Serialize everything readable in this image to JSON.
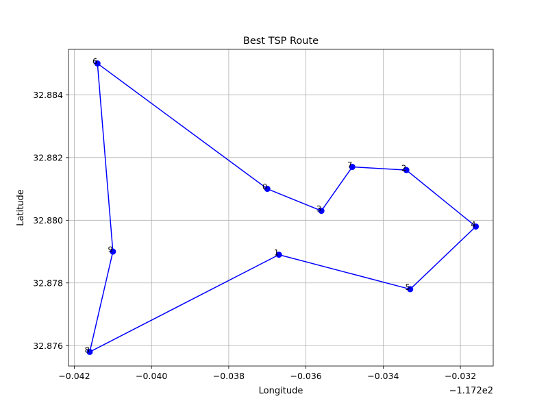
{
  "chart_data": {
    "type": "line",
    "title": "Best TSP Route",
    "xlabel": "Longitude",
    "ylabel": "Latitude",
    "x_offset_label": "−1.172e2",
    "xlim": [
      -0.04215,
      -0.03115
    ],
    "ylim": [
      32.87535,
      32.88545
    ],
    "x_ticks": [
      -0.042,
      -0.04,
      -0.038,
      -0.036,
      -0.034,
      -0.032
    ],
    "x_tick_labels": [
      "−0.042",
      "−0.040",
      "−0.038",
      "−0.036",
      "−0.034",
      "−0.032"
    ],
    "y_ticks": [
      32.876,
      32.878,
      32.88,
      32.882,
      32.884
    ],
    "y_tick_labels": [
      "32.876",
      "32.878",
      "32.880",
      "32.882",
      "32.884"
    ],
    "grid": true,
    "color": "#0000ff",
    "points": [
      {
        "label": "0",
        "x": -0.037,
        "y": 32.881
      },
      {
        "label": "1",
        "x": -0.0367,
        "y": 32.8789
      },
      {
        "label": "2",
        "x": -0.0334,
        "y": 32.8816
      },
      {
        "label": "3",
        "x": -0.0356,
        "y": 32.8803
      },
      {
        "label": "4",
        "x": -0.0316,
        "y": 32.8798
      },
      {
        "label": "5",
        "x": -0.0333,
        "y": 32.8778
      },
      {
        "label": "6",
        "x": -0.0414,
        "y": 32.885
      },
      {
        "label": "7",
        "x": -0.0348,
        "y": 32.8817
      },
      {
        "label": "8",
        "x": -0.0416,
        "y": 32.8758
      },
      {
        "label": "9",
        "x": -0.041,
        "y": 32.879
      }
    ],
    "route": [
      "0",
      "3",
      "7",
      "2",
      "4",
      "5",
      "1",
      "8",
      "9",
      "6",
      "0"
    ]
  }
}
